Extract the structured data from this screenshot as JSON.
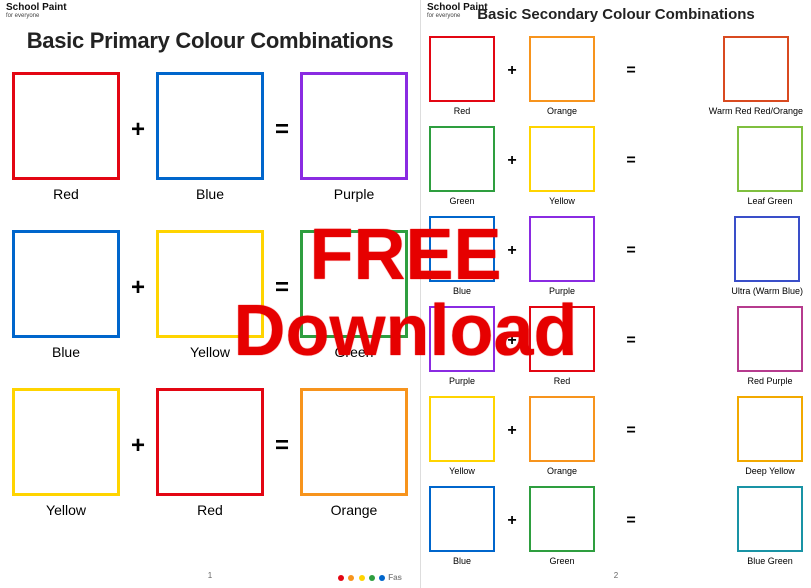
{
  "brand": {
    "title": "School Paint",
    "subtitle": "for everyone"
  },
  "left": {
    "title": "Basic Primary Colour Combinations",
    "page_number": "1",
    "rows": [
      {
        "a": {
          "label": "Red",
          "color": "#e30613"
        },
        "b": {
          "label": "Blue",
          "color": "#0066cc"
        },
        "r": {
          "label": "Purple",
          "color": "#8a2be2"
        }
      },
      {
        "a": {
          "label": "Blue",
          "color": "#0066cc"
        },
        "b": {
          "label": "Yellow",
          "color": "#ffd400"
        },
        "r": {
          "label": "Green",
          "color": "#2e9e3f"
        }
      },
      {
        "a": {
          "label": "Yellow",
          "color": "#ffd400"
        },
        "b": {
          "label": "Red",
          "color": "#e30613"
        },
        "r": {
          "label": "Orange",
          "color": "#f7941d"
        }
      }
    ],
    "op_plus": "+",
    "op_eq": "="
  },
  "right": {
    "title": "Basic Secondary Colour Combinations",
    "page_number": "2",
    "rows": [
      {
        "a": {
          "label": "Red",
          "color": "#e30613"
        },
        "b": {
          "label": "Orange",
          "color": "#f7941d"
        },
        "r": {
          "label": "Warm Red Red/Orange",
          "color": "#d94a20"
        }
      },
      {
        "a": {
          "label": "Green",
          "color": "#2e9e3f"
        },
        "b": {
          "label": "Yellow",
          "color": "#ffd400"
        },
        "r": {
          "label": "Leaf Green",
          "color": "#7fbf3f"
        }
      },
      {
        "a": {
          "label": "Blue",
          "color": "#0066cc"
        },
        "b": {
          "label": "Purple",
          "color": "#8a2be2"
        },
        "r": {
          "label": "Ultra (Warm Blue)",
          "color": "#3a4fc9"
        }
      },
      {
        "a": {
          "label": "Purple",
          "color": "#8a2be2"
        },
        "b": {
          "label": "Red",
          "color": "#e30613"
        },
        "r": {
          "label": "Red Purple",
          "color": "#b63b8e"
        }
      },
      {
        "a": {
          "label": "Yellow",
          "color": "#ffd400"
        },
        "b": {
          "label": "Orange",
          "color": "#f7941d"
        },
        "r": {
          "label": "Deep Yellow",
          "color": "#f2a900"
        }
      },
      {
        "a": {
          "label": "Blue",
          "color": "#0066cc"
        },
        "b": {
          "label": "Green",
          "color": "#2e9e3f"
        },
        "r": {
          "label": "Blue Green",
          "color": "#1993a5"
        }
      }
    ],
    "op_plus": "+",
    "op_eq": "="
  },
  "overlay": {
    "line1": "FREE",
    "line2": "Download",
    "color": "#e60000",
    "fontsize": 72
  },
  "footer_logo": {
    "text": "Fas",
    "swatches": [
      "#e30613",
      "#f7941d",
      "#ffd400",
      "#2e9e3f",
      "#0066cc"
    ]
  },
  "style": {
    "left_box_size": 108,
    "left_border_width": 3,
    "left_label_fontsize": 14,
    "left_title_fontsize": 22,
    "right_box_size": 66,
    "right_border_width": 2,
    "right_label_fontsize": 9,
    "right_title_fontsize": 15,
    "background_color": "#ffffff"
  }
}
